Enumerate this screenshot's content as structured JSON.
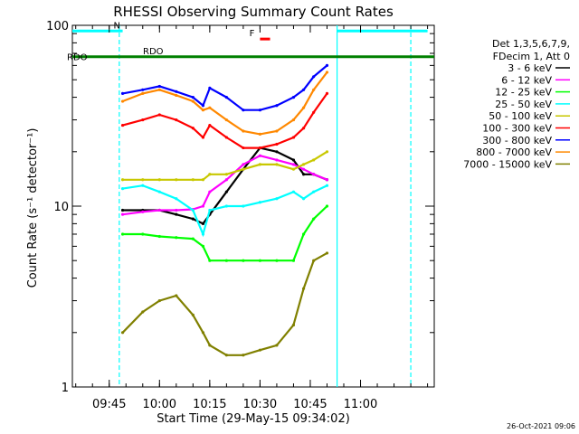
{
  "title": "RHESSI Observing Summary Count Rates",
  "footer_date": "26-Oct-2021 09:06",
  "chart_data": {
    "type": "line",
    "title": "RHESSI Observing Summary Count Rates",
    "xlabel": "Start Time (29-May-15 09:34:02)",
    "ylabel": "Count Rate (s⁻¹ detector⁻¹)",
    "y_scale": "log",
    "ylim": [
      1,
      100
    ],
    "xlim": [
      "09:34",
      "11:22"
    ],
    "x_ticks": [
      "09:45",
      "10:00",
      "10:15",
      "10:30",
      "10:45",
      "11:00"
    ],
    "y_ticks": [
      "1",
      "10",
      "100"
    ],
    "grid": false,
    "legend_position": "right",
    "legend_header": [
      "Det 1,3,5,6,7,9,",
      "FDecim 1, Att 0"
    ],
    "series": [
      {
        "name": "3 - 6 keV",
        "color": "#000000",
        "x": [
          "09:49",
          "09:55",
          "10:00",
          "10:05",
          "10:10",
          "10:13",
          "10:15",
          "10:20",
          "10:25",
          "10:30",
          "10:35",
          "10:40",
          "10:43",
          "10:46",
          "10:50"
        ],
        "values": [
          9.5,
          9.5,
          9.5,
          9.0,
          8.5,
          8.0,
          9.0,
          12,
          16,
          21,
          20,
          18,
          15,
          15,
          14
        ]
      },
      {
        "name": "6 - 12 keV",
        "color": "#ff00ff",
        "x": [
          "09:49",
          "09:55",
          "10:00",
          "10:05",
          "10:10",
          "10:13",
          "10:15",
          "10:20",
          "10:25",
          "10:30",
          "10:35",
          "10:40",
          "10:43",
          "10:46",
          "10:50"
        ],
        "values": [
          9.0,
          9.3,
          9.5,
          9.5,
          9.6,
          10,
          12,
          14,
          17,
          19,
          18,
          17,
          16,
          15,
          14
        ]
      },
      {
        "name": "12 - 25 keV",
        "color": "#00ff00",
        "x": [
          "09:49",
          "09:55",
          "10:00",
          "10:05",
          "10:10",
          "10:13",
          "10:15",
          "10:20",
          "10:25",
          "10:30",
          "10:35",
          "10:40",
          "10:43",
          "10:46",
          "10:50"
        ],
        "values": [
          7.0,
          7.0,
          6.8,
          6.7,
          6.6,
          6.0,
          5.0,
          5.0,
          5.0,
          5.0,
          5.0,
          5.0,
          7.0,
          8.5,
          10
        ]
      },
      {
        "name": "25 - 50 keV",
        "color": "#00ffff",
        "x": [
          "09:49",
          "09:55",
          "10:00",
          "10:05",
          "10:10",
          "10:13",
          "10:15",
          "10:20",
          "10:25",
          "10:30",
          "10:35",
          "10:40",
          "10:43",
          "10:46",
          "10:50"
        ],
        "values": [
          12.5,
          13,
          12,
          11,
          9.5,
          7.0,
          9.5,
          10,
          10,
          10.5,
          11,
          12,
          11,
          12,
          13
        ]
      },
      {
        "name": "50 - 100 keV",
        "color": "#c8c800",
        "x": [
          "09:49",
          "09:55",
          "10:00",
          "10:05",
          "10:10",
          "10:13",
          "10:15",
          "10:20",
          "10:25",
          "10:30",
          "10:35",
          "10:40",
          "10:43",
          "10:46",
          "10:50"
        ],
        "values": [
          14,
          14,
          14,
          14,
          14,
          14,
          15,
          15,
          16,
          17,
          17,
          16,
          17,
          18,
          20
        ]
      },
      {
        "name": "100 - 300 keV",
        "color": "#ff0000",
        "x": [
          "09:49",
          "09:55",
          "10:00",
          "10:05",
          "10:10",
          "10:13",
          "10:15",
          "10:20",
          "10:25",
          "10:30",
          "10:35",
          "10:40",
          "10:43",
          "10:46",
          "10:50"
        ],
        "values": [
          28,
          30,
          32,
          30,
          27,
          24,
          28,
          24,
          21,
          21,
          22,
          24,
          27,
          33,
          42
        ]
      },
      {
        "name": "300 - 800 keV",
        "color": "#0000ff",
        "x": [
          "09:49",
          "09:55",
          "10:00",
          "10:05",
          "10:10",
          "10:13",
          "10:15",
          "10:20",
          "10:25",
          "10:30",
          "10:35",
          "10:40",
          "10:43",
          "10:46",
          "10:50"
        ],
        "values": [
          42,
          44,
          46,
          43,
          40,
          36,
          45,
          40,
          34,
          34,
          36,
          40,
          44,
          52,
          60
        ]
      },
      {
        "name": "800 - 7000 keV",
        "color": "#ff8800",
        "x": [
          "09:49",
          "09:55",
          "10:00",
          "10:05",
          "10:10",
          "10:13",
          "10:15",
          "10:20",
          "10:25",
          "10:30",
          "10:35",
          "10:40",
          "10:43",
          "10:46",
          "10:50"
        ],
        "values": [
          38,
          42,
          44,
          41,
          38,
          34,
          35,
          30,
          26,
          25,
          26,
          30,
          35,
          44,
          55
        ]
      },
      {
        "name": "7000 - 15000 keV",
        "color": "#808000",
        "x": [
          "09:49",
          "09:55",
          "10:00",
          "10:05",
          "10:10",
          "10:13",
          "10:15",
          "10:20",
          "10:25",
          "10:30",
          "10:35",
          "10:40",
          "10:43",
          "10:46",
          "10:50"
        ],
        "values": [
          2.0,
          2.6,
          3.0,
          3.2,
          2.5,
          2.0,
          1.7,
          1.5,
          1.5,
          1.6,
          1.7,
          2.2,
          3.5,
          5.0,
          5.5
        ]
      }
    ],
    "annotations": [
      {
        "label": "N",
        "color": "#00ffff",
        "x_start": "09:34",
        "x_end": "09:49",
        "y": 93
      },
      {
        "label": "",
        "color": "#00ffff",
        "x_start": "10:53",
        "x_end": "11:20",
        "y": 93
      },
      {
        "label": "F",
        "color": "#ff0000",
        "x_start": "10:30",
        "x_end": "10:33",
        "y": 84
      },
      {
        "label": "RDO",
        "color": "#008000",
        "x_start": "09:34",
        "x_end": "11:22",
        "y": 67
      },
      {
        "label": "RDO",
        "color": "#008000",
        "x_start": "09:34",
        "x_end": "09:34",
        "y": 62
      }
    ],
    "vlines": [
      {
        "x": "09:48",
        "color": "#00ffff",
        "style": "dashed"
      },
      {
        "x": "10:53",
        "color": "#00ffff",
        "style": "solid"
      },
      {
        "x": "11:15",
        "color": "#00ffff",
        "style": "dashed"
      }
    ]
  }
}
